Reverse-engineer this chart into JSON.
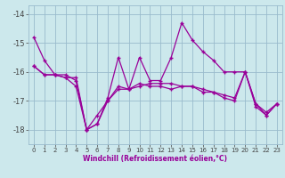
{
  "xlabel": "Windchill (Refroidissement éolien,°C)",
  "x": [
    0,
    1,
    2,
    3,
    4,
    5,
    6,
    7,
    8,
    9,
    10,
    11,
    12,
    13,
    14,
    15,
    16,
    17,
    18,
    19,
    20,
    21,
    22,
    23
  ],
  "line1": [
    -14.8,
    -15.6,
    -16.1,
    -16.1,
    -16.3,
    -18.0,
    -17.8,
    -16.9,
    -15.5,
    -16.6,
    -15.5,
    -16.3,
    -16.3,
    -15.5,
    -14.3,
    -14.9,
    -15.3,
    -15.6,
    -16.0,
    -16.0,
    -16.0,
    -17.1,
    -17.4,
    -17.1
  ],
  "line2": [
    -15.8,
    -16.1,
    -16.1,
    -16.2,
    -16.2,
    -18.0,
    -17.8,
    -17.0,
    -16.5,
    -16.6,
    -16.5,
    -16.4,
    -16.4,
    -16.4,
    -16.5,
    -16.5,
    -16.6,
    -16.7,
    -16.8,
    -16.9,
    -16.0,
    -17.1,
    -17.5,
    -17.1
  ],
  "line3": [
    -15.8,
    -16.1,
    -16.1,
    -16.2,
    -16.5,
    -18.0,
    -17.5,
    -17.0,
    -16.6,
    -16.6,
    -16.4,
    -16.5,
    -16.5,
    -16.6,
    -16.5,
    -16.5,
    -16.7,
    -16.7,
    -16.9,
    -17.0,
    -16.0,
    -17.2,
    -17.5,
    -17.1
  ],
  "color": "#990099",
  "bg_color": "#cce8ec",
  "grid_color": "#99bbcc",
  "ylim": [
    -18.5,
    -13.7
  ],
  "yticks": [
    -18,
    -17,
    -16,
    -15,
    -14
  ],
  "xlim": [
    -0.5,
    23.5
  ]
}
